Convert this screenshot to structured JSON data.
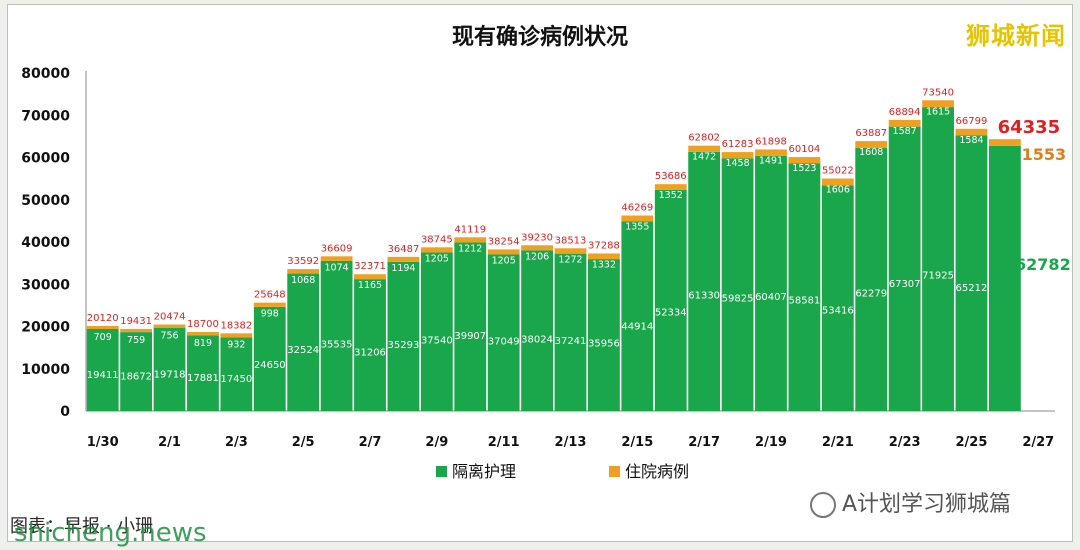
{
  "chart_data": {
    "type": "bar",
    "stacked": true,
    "title": "现有确诊病例状况",
    "categories": [
      "1/30",
      "1/31",
      "2/1",
      "2/2",
      "2/3",
      "2/4",
      "2/5",
      "2/6",
      "2/7",
      "2/8",
      "2/9",
      "2/10",
      "2/11",
      "2/12",
      "2/13",
      "2/14",
      "2/15",
      "2/16",
      "2/17",
      "2/18",
      "2/19",
      "2/20",
      "2/21",
      "2/22",
      "2/23",
      "2/24",
      "2/25",
      "2/26",
      "2/27"
    ],
    "x_tick_labels": [
      "1/30",
      "2/1",
      "2/3",
      "2/5",
      "2/7",
      "2/9",
      "2/11",
      "2/13",
      "2/15",
      "2/17",
      "2/19",
      "2/21",
      "2/23",
      "2/25",
      "2/27"
    ],
    "series": [
      {
        "name": "隔离护理",
        "color": "#1aa64b",
        "values": [
          19411,
          18672,
          19718,
          17881,
          17450,
          24650,
          32524,
          35535,
          31206,
          35293,
          37540,
          39907,
          37049,
          38024,
          37241,
          35956,
          44914,
          52334,
          61330,
          59825,
          60407,
          58581,
          53416,
          62279,
          67307,
          71925,
          65212,
          62782,
          null
        ]
      },
      {
        "name": "住院病例",
        "color": "#f0a020",
        "values": [
          709,
          759,
          756,
          819,
          932,
          998,
          1068,
          1074,
          1165,
          1194,
          1205,
          1212,
          1205,
          1206,
          1272,
          1332,
          1355,
          1352,
          1472,
          1458,
          1491,
          1523,
          1606,
          1608,
          1587,
          1615,
          1584,
          1553,
          null
        ]
      }
    ],
    "totals": [
      20120,
      19431,
      20474,
      18700,
      18382,
      25648,
      33592,
      36609,
      32371,
      36487,
      38745,
      41119,
      38254,
      39230,
      38513,
      37288,
      46269,
      53686,
      62802,
      61283,
      61898,
      60104,
      55022,
      63887,
      68894,
      73540,
      66799,
      64335,
      null
    ],
    "ylim": [
      0,
      80000
    ],
    "y_ticks": [
      0,
      10000,
      20000,
      30000,
      40000,
      50000,
      60000,
      70000,
      80000
    ],
    "grid": false,
    "legend_position": "bottom",
    "highlight": {
      "total": "64335",
      "hospital": "1553",
      "isolation": "62782"
    }
  },
  "brand": "狮城新闻",
  "credit": "图表：早报 · 小珊",
  "site": "shicheng.news",
  "wechat": "A计划学习狮城篇"
}
